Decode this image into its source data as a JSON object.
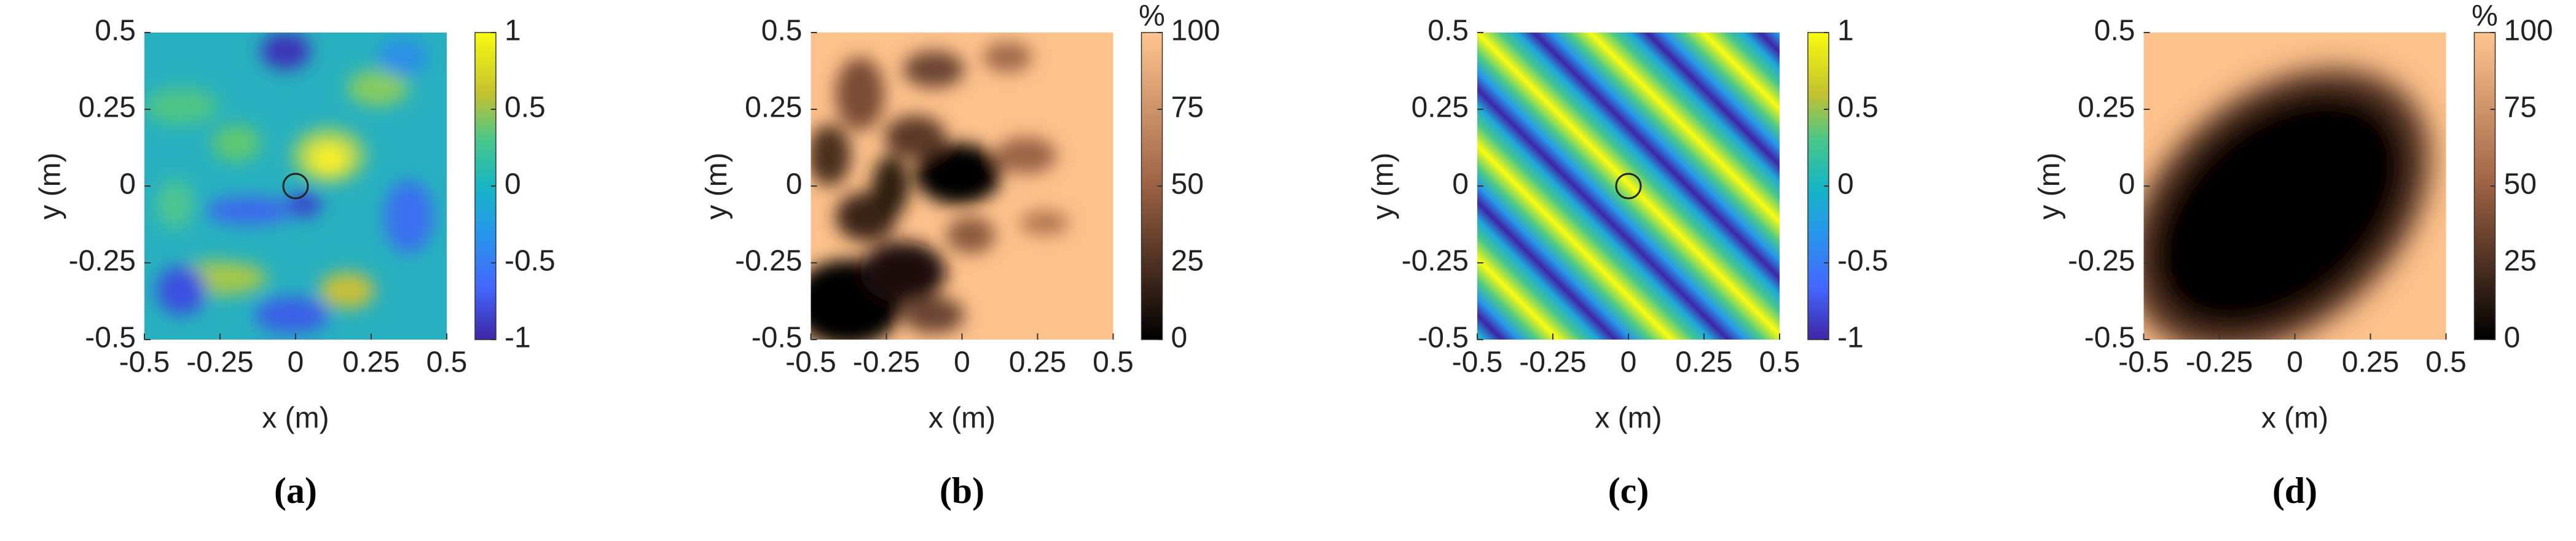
{
  "chart_data": [
    {
      "type": "heatmap",
      "caption": "(a)",
      "xlabel": "x (m)",
      "ylabel": "y (m)",
      "xlim": [
        -0.5,
        0.5
      ],
      "ylim": [
        -0.5,
        0.5
      ],
      "xticks": [
        -0.5,
        -0.25,
        0,
        0.25,
        0.5
      ],
      "yticks": [
        -0.5,
        -0.25,
        0,
        0.25,
        0.5
      ],
      "clim": [
        -1,
        1
      ],
      "cticks": [
        -1,
        -0.5,
        0,
        0.5,
        1
      ],
      "colormap": "parula"
    },
    {
      "type": "heatmap",
      "caption": "(b)",
      "xlabel": "x (m)",
      "ylabel": "y (m)",
      "xlim": [
        -0.5,
        0.5
      ],
      "ylim": [
        -0.5,
        0.5
      ],
      "xticks": [
        -0.5,
        -0.25,
        0,
        0.25,
        0.5
      ],
      "yticks": [
        -0.5,
        -0.25,
        0,
        0.25,
        0.5
      ],
      "clim": [
        0,
        100
      ],
      "cticks": [
        0,
        25,
        50,
        75,
        100
      ],
      "colorbar_label": "%",
      "colormap": "copper"
    },
    {
      "type": "heatmap",
      "caption": "(c)",
      "xlabel": "x (m)",
      "ylabel": "y (m)",
      "xlim": [
        -0.5,
        0.5
      ],
      "ylim": [
        -0.5,
        0.5
      ],
      "xticks": [
        -0.5,
        -0.25,
        0,
        0.25,
        0.5
      ],
      "yticks": [
        -0.5,
        -0.25,
        0,
        0.25,
        0.5
      ],
      "clim": [
        -1,
        1
      ],
      "cticks": [
        -1,
        -0.5,
        0,
        0.5,
        1
      ],
      "colormap": "parula"
    },
    {
      "type": "heatmap",
      "caption": "(d)",
      "xlabel": "x (m)",
      "ylabel": "y (m)",
      "xlim": [
        -0.5,
        0.5
      ],
      "ylim": [
        -0.5,
        0.5
      ],
      "xticks": [
        -0.5,
        -0.25,
        0,
        0.25,
        0.5
      ],
      "yticks": [
        -0.5,
        -0.25,
        0,
        0.25,
        0.5
      ],
      "clim": [
        0,
        100
      ],
      "cticks": [
        0,
        25,
        50,
        75,
        100
      ],
      "colorbar_label": "%",
      "colormap": "copper"
    }
  ]
}
